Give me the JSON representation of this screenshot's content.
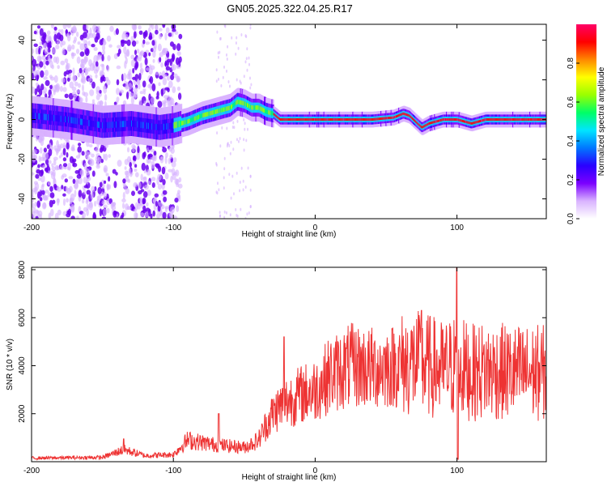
{
  "figure": {
    "title": "GN05.2025.322.04.25.R17"
  },
  "chart_data": [
    {
      "type": "heatmap",
      "xlabel": "Height of straight line (km)",
      "ylabel": "Frequency (Hz)",
      "xlim": [
        -200,
        163
      ],
      "ylim": [
        -50,
        48
      ],
      "xticks": [
        -200,
        -100,
        0,
        100
      ],
      "yticks": [
        -40,
        -20,
        0,
        20,
        40
      ],
      "colorbar": {
        "label": "Normalized spectral amplitude",
        "range": [
          0,
          1
        ],
        "ticks": [
          "0.0",
          "0.2",
          "0.4",
          "0.6",
          "0.8"
        ],
        "colormap": [
          "#ffffff",
          "#d9b3ff",
          "#7b00ff",
          "#2a00ff",
          "#0077ff",
          "#00e5ff",
          "#00ff66",
          "#99ff00",
          "#ffff00",
          "#ff8800",
          "#ff0000",
          "#ff0066"
        ]
      },
      "ridge": {
        "x": [
          -200,
          -175,
          -150,
          -130,
          -110,
          -100,
          -90,
          -80,
          -70,
          -60,
          -55,
          -50,
          -45,
          -40,
          -35,
          -30,
          -25,
          -20,
          0,
          40,
          55,
          62,
          66,
          72,
          75,
          80,
          90,
          100,
          110,
          120,
          140,
          163
        ],
        "y": [
          2,
          0,
          -3,
          -2,
          -4,
          -3,
          -1,
          2,
          4,
          6,
          9,
          8,
          6,
          6,
          4,
          3,
          0,
          0,
          0,
          0,
          1,
          3,
          2,
          -2,
          -4,
          -2,
          0,
          0,
          -2,
          0,
          0,
          0
        ]
      }
    },
    {
      "type": "line",
      "xlabel": "Height of straight line (km)",
      "ylabel": "SNR (10 * v/v)",
      "xlim": [
        -200,
        163
      ],
      "ylim": [
        0,
        8100
      ],
      "xticks": [
        -200,
        -100,
        0,
        100
      ],
      "yticks": [
        2000,
        4000,
        6000,
        8000
      ],
      "color": "#ee3333",
      "envelope": {
        "x": [
          -200,
          -150,
          -135,
          -120,
          -100,
          -90,
          -70,
          -50,
          -40,
          -35,
          -30,
          -25,
          -20,
          -10,
          0,
          10,
          25,
          40,
          55,
          70,
          80,
          90,
          100,
          110,
          120,
          140,
          163
        ],
        "y": [
          150,
          180,
          500,
          250,
          300,
          900,
          700,
          600,
          900,
          1500,
          2000,
          2300,
          2500,
          2800,
          3000,
          3600,
          4000,
          3900,
          4000,
          4100,
          4000,
          3800,
          4000,
          3700,
          3800,
          3700,
          3700
        ]
      },
      "spikes": [
        {
          "x": -135,
          "y": 950
        },
        {
          "x": -68,
          "y": 2000
        },
        {
          "x": -22,
          "y": 5200
        },
        {
          "x": 75,
          "y": 6300
        },
        {
          "x": 100,
          "y": 8100
        }
      ]
    }
  ]
}
